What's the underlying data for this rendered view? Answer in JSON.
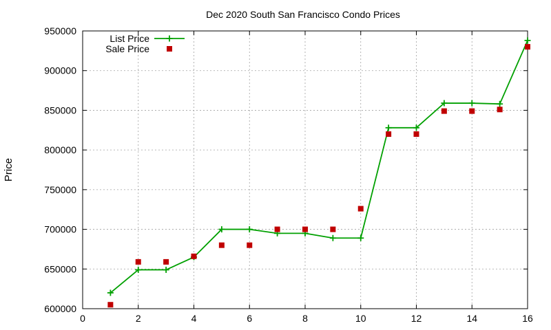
{
  "chart_data": {
    "type": "line",
    "title": "Dec 2020 South San Francisco Condo Prices",
    "xlabel": "",
    "ylabel": "Price",
    "xlim": [
      0,
      16
    ],
    "ylim": [
      600000,
      950000
    ],
    "x_ticks": [
      0,
      2,
      4,
      6,
      8,
      10,
      12,
      14,
      16
    ],
    "y_ticks": [
      600000,
      650000,
      700000,
      750000,
      800000,
      850000,
      900000,
      950000
    ],
    "grid": true,
    "legend_position": "top-left",
    "x": [
      1,
      2,
      3,
      4,
      5,
      6,
      7,
      8,
      9,
      10,
      11,
      12,
      13,
      14,
      15,
      16
    ],
    "series": [
      {
        "name": "List Price",
        "style": "lines+points",
        "marker": "plus",
        "color": "#00a000",
        "values": [
          620000,
          649000,
          649000,
          665000,
          700000,
          700000,
          695000,
          695000,
          689000,
          689000,
          828000,
          828000,
          859000,
          859000,
          858000,
          938000
        ]
      },
      {
        "name": "Sale Price",
        "style": "points",
        "marker": "square",
        "color": "#c00000",
        "values": [
          605000,
          659000,
          659000,
          666000,
          680000,
          680000,
          700000,
          700000,
          700000,
          726000,
          820000,
          820000,
          849000,
          849000,
          851000,
          930000
        ]
      }
    ]
  }
}
